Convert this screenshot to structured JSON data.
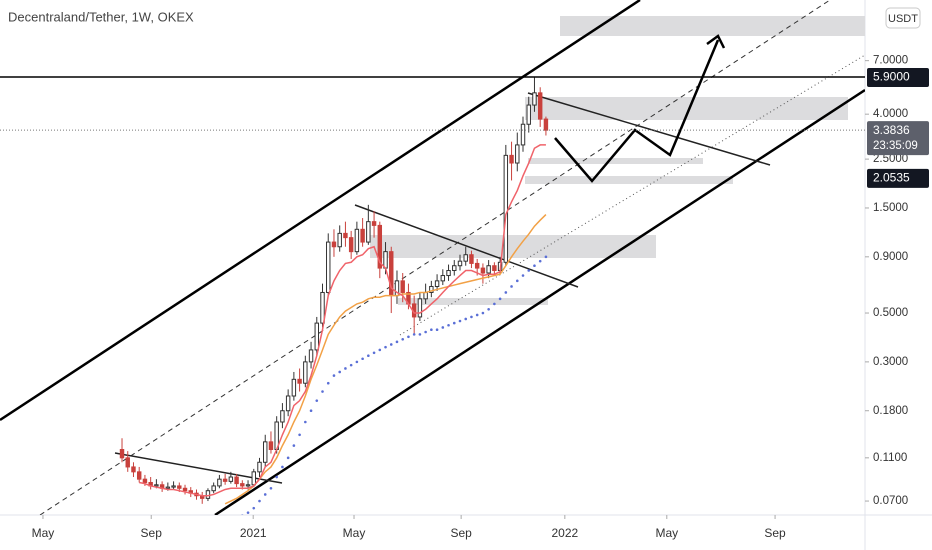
{
  "chart_data": {
    "type": "candlestick",
    "title": "Decentraland/Tether, 1W, OKEX",
    "currency": "USDT",
    "log_scale": true,
    "up_color": "#ffffff",
    "down_color": "#c9413c",
    "open": [
      0.12,
      0.11,
      0.1,
      0.095,
      0.088,
      0.085,
      0.082,
      0.083,
      0.08,
      0.081,
      0.082,
      0.08,
      0.078,
      0.076,
      0.074,
      0.072,
      0.078,
      0.082,
      0.088,
      0.086,
      0.09,
      0.084,
      0.082,
      0.083,
      0.095,
      0.105,
      0.13,
      0.12,
      0.16,
      0.18,
      0.21,
      0.25,
      0.24,
      0.3,
      0.34,
      0.45,
      0.62,
      1.05,
      1.0,
      1.15,
      1.1,
      0.95,
      1.2,
      1.05,
      1.3,
      1.25,
      0.8,
      0.95,
      0.6,
      0.7,
      0.62,
      0.55,
      0.48,
      0.58,
      0.62,
      0.66,
      0.7,
      0.74,
      0.78,
      0.82,
      0.86,
      0.92,
      0.84,
      0.8,
      0.76,
      0.82,
      0.78,
      0.85,
      2.6,
      2.4,
      2.9,
      3.6,
      4.4,
      5.0,
      3.8
    ],
    "high": [
      0.135,
      0.118,
      0.105,
      0.1,
      0.092,
      0.09,
      0.088,
      0.086,
      0.085,
      0.086,
      0.085,
      0.083,
      0.081,
      0.079,
      0.077,
      0.08,
      0.085,
      0.092,
      0.093,
      0.095,
      0.093,
      0.087,
      0.087,
      0.098,
      0.11,
      0.14,
      0.145,
      0.17,
      0.195,
      0.225,
      0.27,
      0.28,
      0.32,
      0.37,
      0.48,
      0.68,
      1.15,
      1.2,
      1.25,
      1.3,
      1.18,
      1.3,
      1.35,
      1.55,
      1.45,
      1.3,
      1.05,
      1.0,
      0.78,
      0.76,
      0.68,
      0.6,
      0.62,
      0.68,
      0.7,
      0.75,
      0.79,
      0.83,
      0.87,
      0.92,
      1.0,
      0.96,
      0.88,
      0.84,
      0.87,
      0.85,
      0.9,
      2.9,
      3.0,
      3.3,
      3.9,
      4.8,
      5.9,
      5.3,
      3.9
    ],
    "low": [
      0.105,
      0.095,
      0.09,
      0.085,
      0.082,
      0.079,
      0.08,
      0.077,
      0.078,
      0.079,
      0.077,
      0.075,
      0.073,
      0.071,
      0.068,
      0.07,
      0.076,
      0.08,
      0.083,
      0.084,
      0.081,
      0.079,
      0.079,
      0.081,
      0.09,
      0.1,
      0.115,
      0.115,
      0.15,
      0.17,
      0.2,
      0.22,
      0.23,
      0.28,
      0.32,
      0.43,
      0.6,
      0.9,
      0.95,
      1.0,
      0.88,
      0.92,
      1.0,
      1.02,
      1.1,
      0.72,
      0.75,
      0.5,
      0.55,
      0.56,
      0.52,
      0.4,
      0.46,
      0.55,
      0.59,
      0.63,
      0.67,
      0.7,
      0.74,
      0.78,
      0.82,
      0.8,
      0.74,
      0.68,
      0.72,
      0.74,
      0.75,
      0.82,
      2.0,
      2.2,
      2.7,
      3.3,
      4.1,
      3.5,
      3.2
    ],
    "close": [
      0.11,
      0.1,
      0.095,
      0.088,
      0.085,
      0.082,
      0.083,
      0.08,
      0.081,
      0.082,
      0.08,
      0.078,
      0.076,
      0.074,
      0.072,
      0.078,
      0.082,
      0.088,
      0.086,
      0.09,
      0.084,
      0.082,
      0.083,
      0.095,
      0.105,
      0.13,
      0.12,
      0.16,
      0.18,
      0.21,
      0.25,
      0.24,
      0.3,
      0.34,
      0.45,
      0.62,
      1.05,
      1.0,
      1.15,
      1.1,
      0.95,
      1.2,
      1.05,
      1.3,
      1.25,
      0.8,
      0.95,
      0.6,
      0.7,
      0.62,
      0.55,
      0.48,
      0.58,
      0.62,
      0.66,
      0.7,
      0.74,
      0.78,
      0.82,
      0.86,
      0.92,
      0.84,
      0.8,
      0.76,
      0.82,
      0.78,
      0.85,
      2.6,
      2.4,
      2.9,
      3.6,
      4.4,
      5.0,
      3.8,
      3.3836
    ],
    "series": [
      {
        "color": "#f2a146",
        "style": "line",
        "values": [
          null,
          null,
          null,
          null,
          null,
          null,
          null,
          null,
          null,
          null,
          null,
          null,
          null,
          null,
          null,
          null,
          null,
          null,
          0.068,
          0.07,
          0.072,
          0.075,
          0.078,
          0.082,
          0.088,
          0.095,
          0.1,
          0.11,
          0.125,
          0.14,
          0.16,
          0.18,
          0.21,
          0.25,
          0.29,
          0.34,
          0.4,
          0.44,
          0.48,
          0.51,
          0.53,
          0.55,
          0.56,
          0.58,
          0.59,
          0.59,
          0.6,
          0.6,
          0.6,
          0.61,
          0.61,
          0.61,
          0.62,
          0.62,
          0.63,
          0.64,
          0.65,
          0.66,
          0.67,
          0.68,
          0.69,
          0.7,
          0.71,
          0.72,
          0.73,
          0.74,
          0.75,
          0.82,
          0.9,
          0.98,
          1.06,
          1.14,
          1.24,
          1.32,
          1.4
        ]
      },
      {
        "color": "#f0636a",
        "style": "line",
        "values": [
          null,
          null,
          null,
          0.085,
          0.084,
          0.082,
          0.081,
          0.08,
          0.079,
          0.079,
          0.078,
          0.077,
          0.076,
          0.075,
          0.074,
          0.074,
          0.075,
          0.077,
          0.079,
          0.08,
          0.08,
          0.08,
          0.08,
          0.082,
          0.088,
          0.1,
          0.105,
          0.12,
          0.14,
          0.16,
          0.19,
          0.2,
          0.22,
          0.26,
          0.32,
          0.42,
          0.6,
          0.7,
          0.78,
          0.84,
          0.85,
          0.9,
          0.92,
          0.98,
          1.0,
          0.85,
          0.8,
          0.65,
          0.62,
          0.6,
          0.55,
          0.5,
          0.5,
          0.52,
          0.55,
          0.58,
          0.62,
          0.66,
          0.7,
          0.74,
          0.78,
          0.78,
          0.76,
          0.74,
          0.75,
          0.75,
          0.77,
          1.4,
          1.6,
          1.8,
          2.1,
          2.4,
          2.8,
          2.9,
          2.9
        ]
      },
      {
        "color": "#5a6fd6",
        "style": "dots",
        "values": [
          null,
          null,
          null,
          null,
          null,
          null,
          null,
          null,
          null,
          null,
          null,
          null,
          null,
          null,
          null,
          null,
          null,
          null,
          null,
          null,
          null,
          0.06,
          0.062,
          0.065,
          0.07,
          0.075,
          0.08,
          0.09,
          0.1,
          0.11,
          0.125,
          0.14,
          0.16,
          0.18,
          0.2,
          0.22,
          0.24,
          0.26,
          0.27,
          0.28,
          0.29,
          0.3,
          0.31,
          0.32,
          0.33,
          0.34,
          0.35,
          0.36,
          0.37,
          0.38,
          0.39,
          0.4,
          0.4,
          0.41,
          0.42,
          0.42,
          0.43,
          0.44,
          0.45,
          0.46,
          0.47,
          0.48,
          0.49,
          0.5,
          0.52,
          0.55,
          0.58,
          0.62,
          0.66,
          0.7,
          0.74,
          0.78,
          0.82,
          0.86,
          0.9
        ]
      }
    ],
    "ylim": [
      0.0605,
      13.2
    ],
    "yticks": [
      {
        "value": 0.07,
        "label": "0.0700"
      },
      {
        "value": 0.11,
        "label": "0.1100"
      },
      {
        "value": 0.18,
        "label": "0.1800"
      },
      {
        "value": 0.3,
        "label": "0.3000"
      },
      {
        "value": 0.5,
        "label": "0.5000"
      },
      {
        "value": 0.9,
        "label": "0.9000"
      },
      {
        "value": 1.5,
        "label": "1.5000"
      },
      {
        "value": 2.5,
        "label": "2.5000"
      },
      {
        "value": 4,
        "label": "4.0000"
      },
      {
        "value": 7,
        "label": "7.0000"
      }
    ],
    "xlim": [
      -21.3,
      129.7
    ],
    "xticks": [
      {
        "value": -13.8,
        "label": "May"
      },
      {
        "value": 5.1,
        "label": "Sep"
      },
      {
        "value": 22.9,
        "label": "2021"
      },
      {
        "value": 40.5,
        "label": "May"
      },
      {
        "value": 59.2,
        "label": "Sep"
      },
      {
        "value": 77.3,
        "label": "2022"
      },
      {
        "value": 95.1,
        "label": "May"
      },
      {
        "value": 114.0,
        "label": "Sep"
      }
    ],
    "price_labels": [
      {
        "value": 5.9,
        "label": "5.9000",
        "style": "line"
      },
      {
        "value": 3.3836,
        "label": "3.3836",
        "countdown": "23:35:09",
        "style": "dotted"
      },
      {
        "value": 2.0535,
        "label": "2.0535",
        "style": "none"
      }
    ]
  }
}
